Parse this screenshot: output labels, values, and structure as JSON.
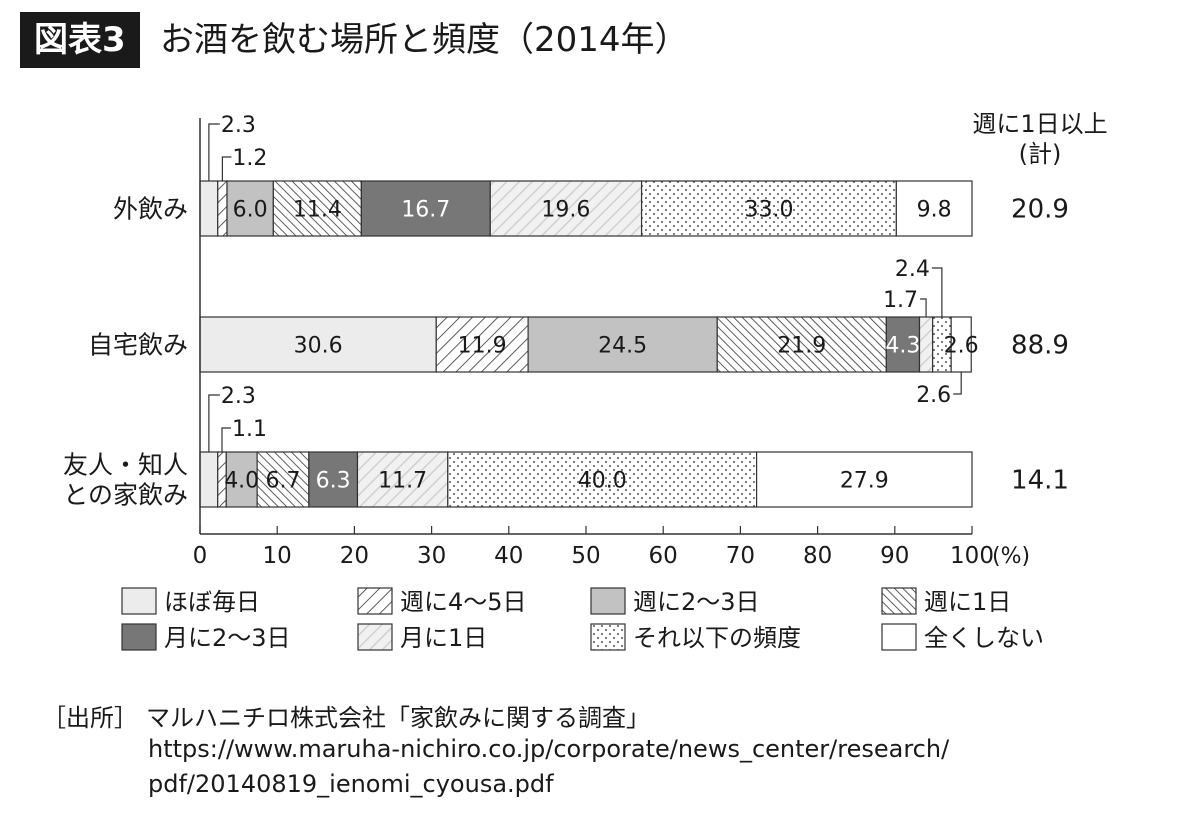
{
  "figure": {
    "badge": "図表3",
    "title": "お酒を飲む場所と頻度（2014年）"
  },
  "chart_data": {
    "type": "bar",
    "orientation": "horizontal",
    "stacked": true,
    "title": "お酒を飲む場所と頻度（2014年）",
    "xlim": [
      0,
      100
    ],
    "x_ticks": [
      0,
      10,
      20,
      30,
      40,
      50,
      60,
      70,
      80,
      90,
      100
    ],
    "x_unit": "(%)",
    "right_header": [
      "週に1日以上",
      "(計)"
    ],
    "categories": [
      {
        "label_lines": [
          "外飲み"
        ],
        "total": "20.9"
      },
      {
        "label_lines": [
          "自宅飲み"
        ],
        "total": "88.9"
      },
      {
        "label_lines": [
          "友人・知人",
          "との家飲み"
        ],
        "total": "14.1"
      }
    ],
    "series": [
      {
        "name": "ほぼ毎日",
        "pattern": "light",
        "values": [
          2.3,
          30.6,
          2.3
        ]
      },
      {
        "name": "週に4〜5日",
        "pattern": "diag",
        "values": [
          1.2,
          11.9,
          1.1
        ]
      },
      {
        "name": "週に2〜3日",
        "pattern": "gray",
        "values": [
          6.0,
          24.5,
          4.0
        ]
      },
      {
        "name": "週に1日",
        "pattern": "dense",
        "values": [
          11.4,
          21.9,
          6.7
        ]
      },
      {
        "name": "月に2〜3日",
        "pattern": "dark",
        "values": [
          16.7,
          4.3,
          6.3
        ]
      },
      {
        "name": "月に1日",
        "pattern": "lightdiag",
        "values": [
          19.6,
          1.7,
          11.7
        ]
      },
      {
        "name": "それ以下の頻度",
        "pattern": "dots",
        "values": [
          33.0,
          2.4,
          40.0
        ]
      },
      {
        "name": "全くしない",
        "pattern": "white",
        "values": [
          9.8,
          2.6,
          27.9
        ]
      }
    ],
    "value_labels": [
      [
        "2.3",
        "1.2",
        "6.0",
        "11.4",
        "16.7",
        "19.6",
        "33.0",
        "9.8"
      ],
      [
        "30.6",
        "11.9",
        "24.5",
        "21.9",
        "4.3",
        "1.7",
        "2.4",
        "2.6"
      ],
      [
        "2.3",
        "1.1",
        "4.0",
        "6.7",
        "6.3",
        "11.7",
        "40.0",
        "27.9"
      ]
    ],
    "colors": {
      "light": "#ececec",
      "gray": "#c2c2c2",
      "dark": "#777777",
      "white": "#ffffff",
      "stroke": "#333333"
    }
  },
  "source": {
    "label": "［出所］",
    "text": "マルハニチロ株式会社「家飲みに関する調査」",
    "url_line1": "https://www.maruha-nichiro.co.jp/corporate/news_center/research/",
    "url_line2": "pdf/20140819_ienomi_cyousa.pdf"
  }
}
